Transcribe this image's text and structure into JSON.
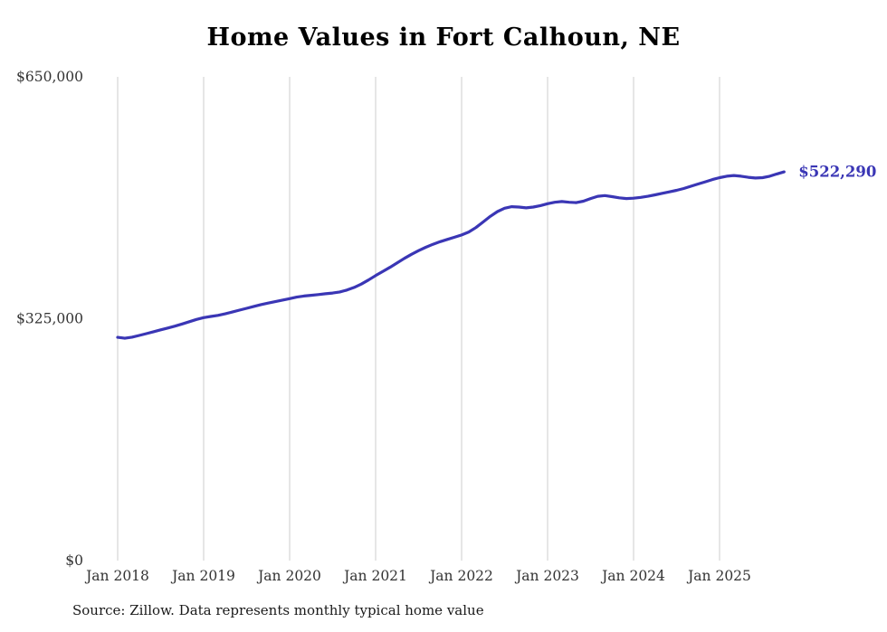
{
  "title": "Home Values in Fort Calhoun, NE",
  "source_note": "Source: Zillow. Data represents monthly typical home value",
  "colors": {
    "line": "#3a36b5",
    "end_label": "#3a36b5",
    "gridline": "#cccccc",
    "axis_text": "#333333",
    "title_text": "#000000"
  },
  "chart_data": {
    "type": "line",
    "title": "Home Values in Fort Calhoun, NE",
    "ylabel": "",
    "xlabel": "",
    "ylim": [
      0,
      650000
    ],
    "y_ticks": [
      650000,
      325000,
      0
    ],
    "y_tick_labels": [
      "$650,000",
      "$325,000",
      "$0"
    ],
    "x_tick_labels": [
      "Jan 2018",
      "Jan 2019",
      "Jan 2020",
      "Jan 2021",
      "Jan 2022",
      "Jan 2023",
      "Jan 2024",
      "Jan 2025"
    ],
    "x_start": "2018-01",
    "frequency": "monthly",
    "grid": "vertical-only",
    "legend": "none",
    "end_value": 522290,
    "end_value_label": "$522,290",
    "series_name": "Typical home value",
    "values": [
      300000,
      298800,
      300200,
      302500,
      305000,
      307500,
      310000,
      312500,
      315000,
      318000,
      321000,
      324000,
      326500,
      328000,
      329500,
      331500,
      334000,
      336500,
      339000,
      341500,
      344000,
      346000,
      348000,
      350000,
      352000,
      354000,
      355500,
      356500,
      357500,
      358500,
      359500,
      361000,
      363500,
      367000,
      371500,
      377000,
      383000,
      388500,
      394000,
      400000,
      406000,
      411500,
      416500,
      421000,
      425000,
      428500,
      431500,
      434500,
      437500,
      441500,
      447500,
      455000,
      462500,
      469000,
      473500,
      475500,
      475000,
      474000,
      475000,
      477000,
      479500,
      481500,
      482500,
      481500,
      481000,
      483000,
      486500,
      489500,
      490500,
      489000,
      487500,
      486500,
      487000,
      488000,
      489500,
      491500,
      493500,
      495500,
      497500,
      500000,
      503000,
      506000,
      509000,
      512000,
      514500,
      516500,
      517500,
      516500,
      515000,
      514000,
      514500,
      516500,
      519500,
      522290
    ]
  }
}
